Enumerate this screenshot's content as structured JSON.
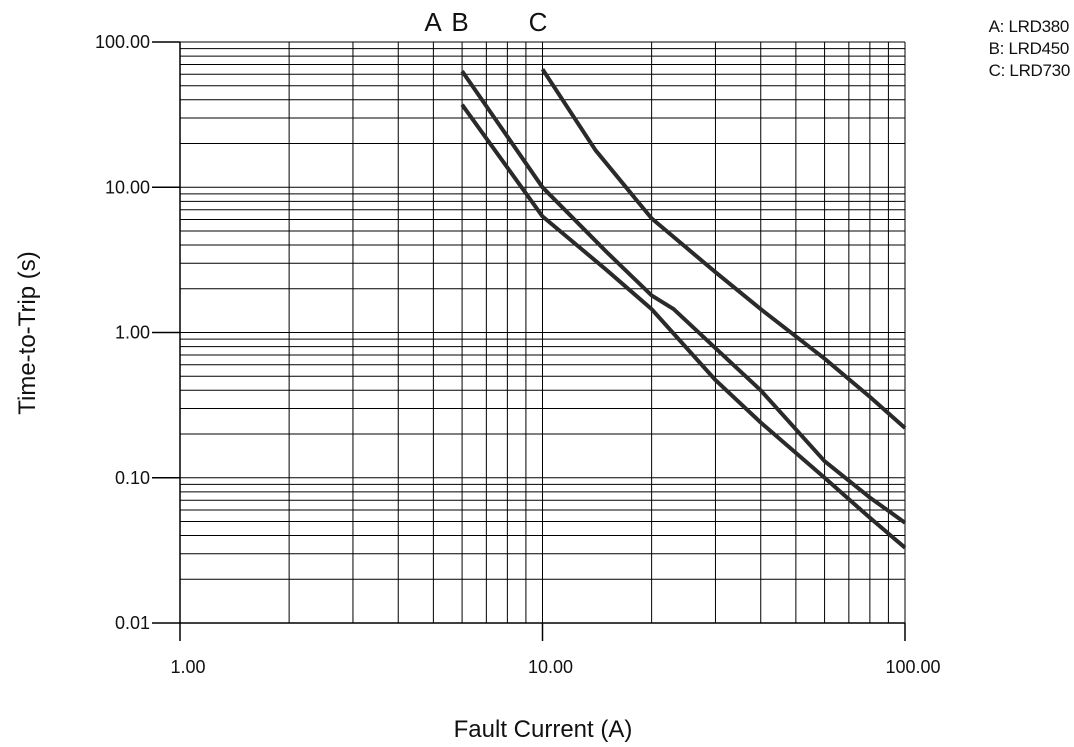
{
  "chart_data": {
    "type": "line",
    "title": "",
    "xlabel": "Fault Current (A)",
    "ylabel": "Time-to-Trip (s)",
    "xscale": "log",
    "yscale": "log",
    "xlim": [
      1,
      100
    ],
    "ylim": [
      0.01,
      100
    ],
    "grid": true,
    "x_ticks": [
      "1.00",
      "10.00",
      "100.00"
    ],
    "y_ticks": [
      "100.00",
      "10.00",
      "1.00",
      "0.10",
      "0.01"
    ],
    "curve_labels": [
      "A",
      "B",
      "C"
    ],
    "legend_entries": [
      "A: LRD380",
      "B: LRD450",
      "C: LRD730"
    ],
    "legend_position": "top-right",
    "series": [
      {
        "name": "A",
        "x": [
          6,
          10,
          15,
          20,
          30,
          40,
          60,
          80,
          100
        ],
        "y": [
          37,
          6.3,
          2.7,
          1.45,
          0.47,
          0.24,
          0.1,
          0.053,
          0.033
        ]
      },
      {
        "name": "B",
        "x": [
          6,
          10,
          15,
          20,
          23,
          30,
          40,
          60,
          80,
          100
        ],
        "y": [
          63,
          10,
          3.6,
          1.8,
          1.45,
          0.78,
          0.4,
          0.13,
          0.073,
          0.049
        ]
      },
      {
        "name": "C",
        "x": [
          10,
          14,
          20,
          30,
          40,
          60,
          80,
          100
        ],
        "y": [
          65,
          18,
          6.1,
          2.6,
          1.45,
          0.66,
          0.36,
          0.22
        ]
      }
    ]
  }
}
